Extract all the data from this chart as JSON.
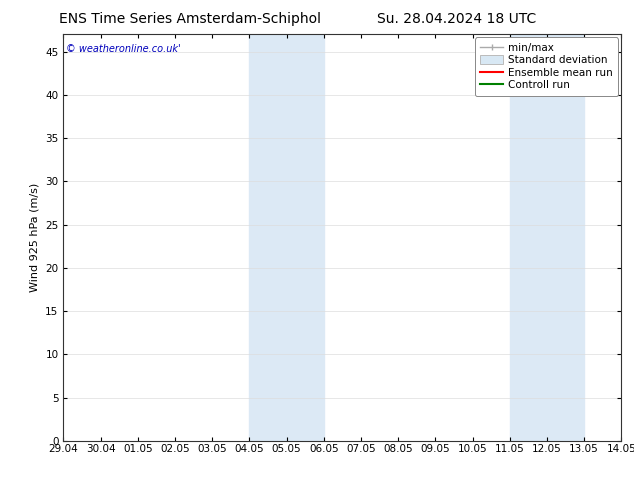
{
  "title_left": "ENS Time Series Amsterdam-Schiphol",
  "title_right": "Su. 28.04.2024 18 UTC",
  "ylabel": "Wind 925 hPa (m/s)",
  "watermark": "© weatheronline.co.uk'",
  "xmin": 0,
  "xmax": 15,
  "ymin": 0,
  "ymax": 47,
  "yticks": [
    0,
    5,
    10,
    15,
    20,
    25,
    30,
    35,
    40,
    45
  ],
  "xtick_labels": [
    "29.04",
    "30.04",
    "01.05",
    "02.05",
    "03.05",
    "04.05",
    "05.05",
    "06.05",
    "07.05",
    "08.05",
    "09.05",
    "10.05",
    "11.05",
    "12.05",
    "13.05",
    "14.05"
  ],
  "shaded_regions": [
    {
      "xstart": 5,
      "xend": 7,
      "color": "#dce9f5"
    },
    {
      "xstart": 12,
      "xend": 14,
      "color": "#dce9f5"
    }
  ],
  "legend_entries": [
    {
      "label": "min/max"
    },
    {
      "label": "Standard deviation"
    },
    {
      "label": "Ensemble mean run"
    },
    {
      "label": "Controll run"
    }
  ],
  "background_color": "#ffffff",
  "plot_bg_color": "#ffffff",
  "font_color": "#000000",
  "title_fontsize": 10,
  "axis_fontsize": 7.5,
  "watermark_color": "#0000bb",
  "legend_fontsize": 7.5,
  "minmax_color": "#aaaaaa",
  "stddev_color": "#d8e8f4",
  "ensemble_color": "#ff0000",
  "control_color": "#008000"
}
